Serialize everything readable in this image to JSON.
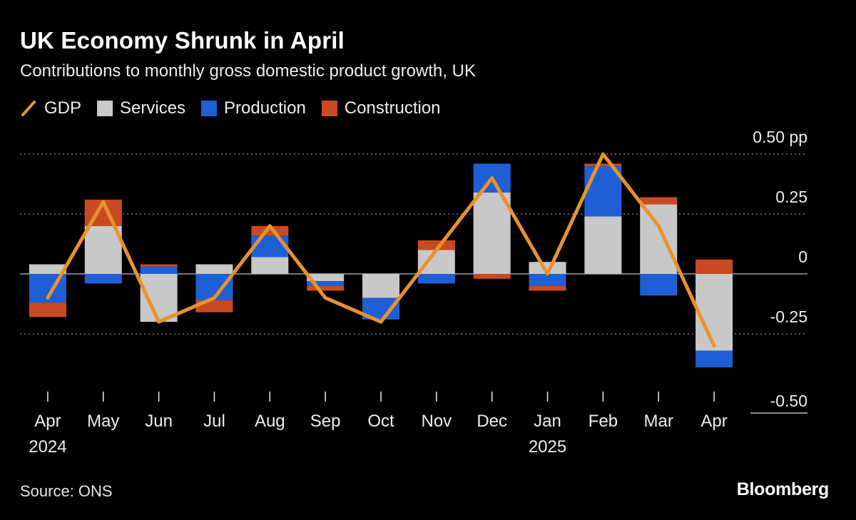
{
  "title": "UK Economy Shrunk in April",
  "subtitle": "Contributions to monthly gross domestic product growth, UK",
  "legend": {
    "gdp": "GDP",
    "services": "Services",
    "production": "Production",
    "construction": "Construction"
  },
  "colors": {
    "gdp": "#e8922b",
    "services": "#c8c8c8",
    "production": "#1f5fd6",
    "construction": "#c94a22",
    "grid": "#8a8a8a",
    "zero": "#bdbdbd",
    "axis_text": "#ededed"
  },
  "source": "Source: ONS",
  "brand": "Bloomberg",
  "chart_data": {
    "type": "bar",
    "stacked": true,
    "categories": [
      "Apr",
      "May",
      "Jun",
      "Jul",
      "Aug",
      "Sep",
      "Oct",
      "Nov",
      "Dec",
      "Jan",
      "Feb",
      "Mar",
      "Apr"
    ],
    "year_labels": [
      "2024",
      "",
      "",
      "",
      "",
      "",
      "",
      "",
      "",
      "2025",
      "",
      "",
      ""
    ],
    "series": [
      {
        "name": "Services",
        "values": [
          0.04,
          0.2,
          -0.2,
          0.04,
          0.07,
          -0.03,
          -0.1,
          0.1,
          0.34,
          0.05,
          0.24,
          0.29,
          -0.32
        ]
      },
      {
        "name": "Production",
        "values": [
          -0.12,
          -0.04,
          0.03,
          -0.11,
          0.09,
          -0.02,
          -0.09,
          -0.04,
          0.12,
          -0.05,
          0.21,
          -0.09,
          -0.07
        ]
      },
      {
        "name": "Construction",
        "values": [
          -0.06,
          0.11,
          0.01,
          -0.05,
          0.04,
          -0.02,
          0.0,
          0.04,
          -0.02,
          -0.02,
          0.01,
          0.03,
          0.06
        ]
      }
    ],
    "line": {
      "name": "GDP",
      "values": [
        -0.1,
        0.3,
        -0.2,
        -0.1,
        0.2,
        -0.1,
        -0.2,
        0.1,
        0.4,
        0.0,
        0.5,
        0.2,
        -0.3
      ]
    },
    "ylim": [
      -0.5,
      0.5
    ],
    "yticks": [
      0.5,
      0.25,
      0,
      -0.25,
      -0.5
    ],
    "ytick_labels": [
      "0.50 pp",
      "0.25",
      "0",
      "-0.25",
      "-0.50"
    ],
    "xlabel": "",
    "ylabel": "",
    "grid": true,
    "legend_position": "top-left"
  }
}
